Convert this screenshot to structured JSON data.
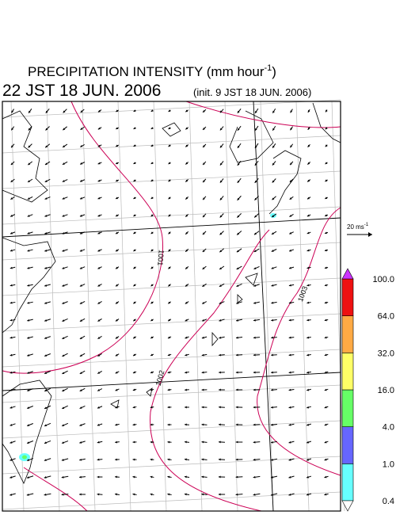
{
  "header": {
    "title": "PRECIPITATION INTENSITY (mm hour",
    "title_exponent": "-1",
    "title_close": ")",
    "valid_time": "22 JST 18 JUN. 2006",
    "init_time": "(init. 9 JST 18 JUN. 2006)"
  },
  "vector_scale": {
    "label": "20 ms",
    "exponent": "-1"
  },
  "isobars": [
    {
      "label": "1001"
    },
    {
      "label": "1002"
    },
    {
      "label": "1003"
    }
  ],
  "colorbar": {
    "labels": [
      "0.4",
      "1.0",
      "4.0",
      "16.0",
      "32.0",
      "64.0",
      "100.0"
    ],
    "colors": [
      "#66ffff",
      "#6666ff",
      "#66ff66",
      "#ffff66",
      "#ffaa44",
      "#ee1111"
    ],
    "over_color": "#cc33ff",
    "under_color": "#ffffff"
  }
}
